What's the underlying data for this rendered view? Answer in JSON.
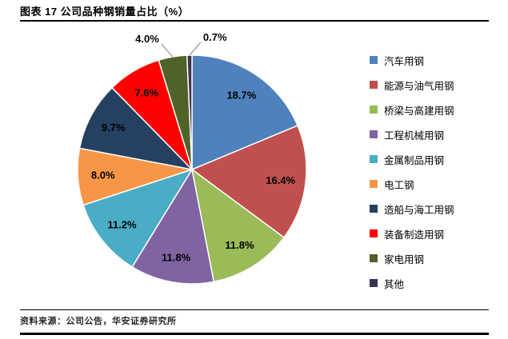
{
  "header": {
    "title": "图表 17 公司品种钢销量占比（%）"
  },
  "footer": {
    "source": "资料来源：公司公告，华安证券研究所"
  },
  "chart_data": {
    "type": "pie",
    "title": "图表 17 公司品种钢销量占比（%）",
    "unit": "%",
    "categories": [
      "汽车用钢",
      "能源与油气用钢",
      "桥梁与高建用钢",
      "工程机械用钢",
      "金属制品用钢",
      "电工钢",
      "造船与海工用钢",
      "装备制造用钢",
      "家电用钢",
      "其他"
    ],
    "values": [
      18.7,
      16.4,
      11.8,
      11.8,
      11.2,
      8.0,
      9.7,
      7.6,
      4.0,
      0.7
    ],
    "data_labels": [
      "18.7%",
      "16.4%",
      "11.8%",
      "11.8%",
      "11.2%",
      "8.0%",
      "9.7%",
      "7.6%",
      "4.0%",
      "0.7%"
    ],
    "colors": [
      "#4F81BD",
      "#C0504D",
      "#9BBB59",
      "#8064A2",
      "#4BACC6",
      "#F79646",
      "#254061",
      "#FF0000",
      "#4F6228",
      "#3F3151"
    ],
    "start_angle_deg": 0,
    "direction": "clockwise",
    "legend_position": "right",
    "label_color": "#000000",
    "leader_line_color": "#808080"
  }
}
